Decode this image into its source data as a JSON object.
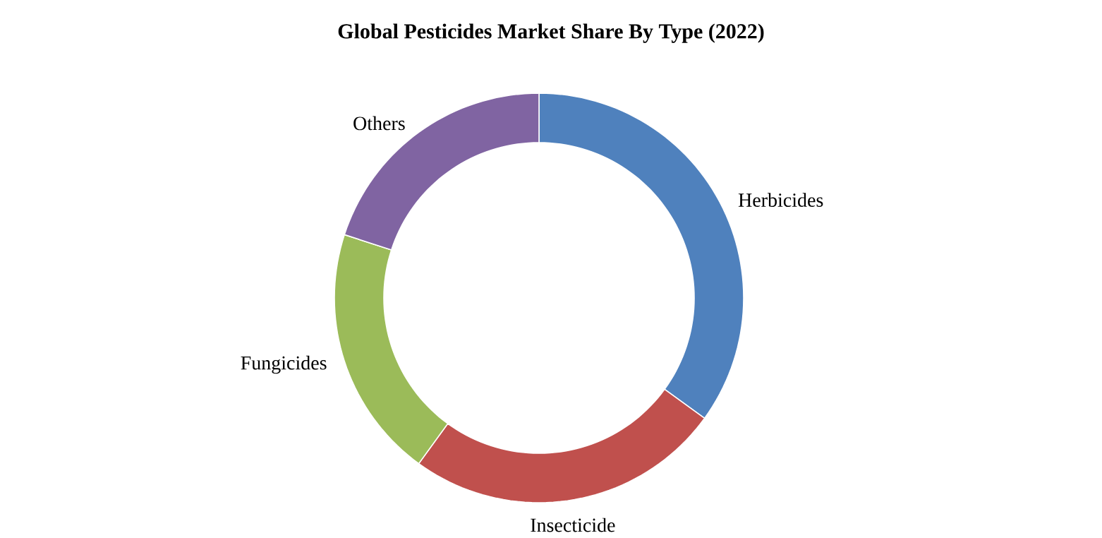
{
  "chart_data": {
    "type": "donut",
    "title": "Global Pesticides Market Share By Type (2022)",
    "categories": [
      "Herbicides",
      "Insecticide",
      "Fungicides",
      "Others"
    ],
    "values": [
      35,
      25,
      20,
      20
    ],
    "colors": [
      "#4f81bd",
      "#c0504d",
      "#9bbb59",
      "#8064a2"
    ]
  }
}
